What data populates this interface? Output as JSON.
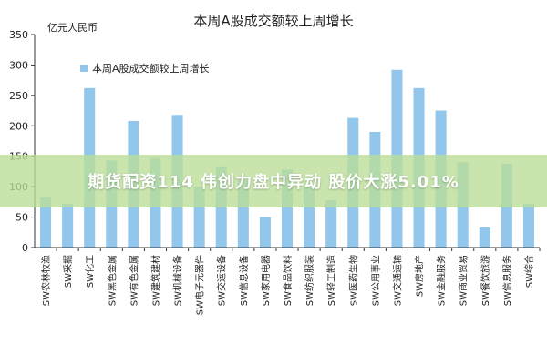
{
  "overlay": {
    "text": "期货配资114 伟创力盘中异动 股价大涨5.01%"
  },
  "chart_data": {
    "type": "bar",
    "title": "本周A股成交额较上周增长",
    "unit_label": "亿元人民币",
    "legend": {
      "label": "本周A股成交额较上周增长",
      "placement": "top-left"
    },
    "ylim": [
      0,
      350
    ],
    "yticks": [
      0,
      50,
      100,
      150,
      200,
      250,
      300,
      350
    ],
    "grid": false,
    "bar_color": "#93c6eb",
    "categories": [
      "SW农林牧渔",
      "SW采掘",
      "SW化工",
      "SW黑色金属",
      "SW有色金属",
      "SW建筑建材",
      "SW机械设备",
      "SW电子元器件",
      "SW交运设备",
      "SW信息设备",
      "SW家用电器",
      "SW食品饮料",
      "SW纺织服装",
      "SW轻工制造",
      "SW医药生物",
      "SW公用事业",
      "SW交通运输",
      "SW房地产",
      "SW金融服务",
      "SW商业贸易",
      "SW餐饮旅游",
      "SW信息服务",
      "SW综合"
    ],
    "values": [
      82,
      72,
      262,
      143,
      208,
      147,
      218,
      100,
      132,
      110,
      50,
      128,
      100,
      78,
      213,
      190,
      292,
      262,
      225,
      140,
      33,
      138,
      72
    ]
  }
}
